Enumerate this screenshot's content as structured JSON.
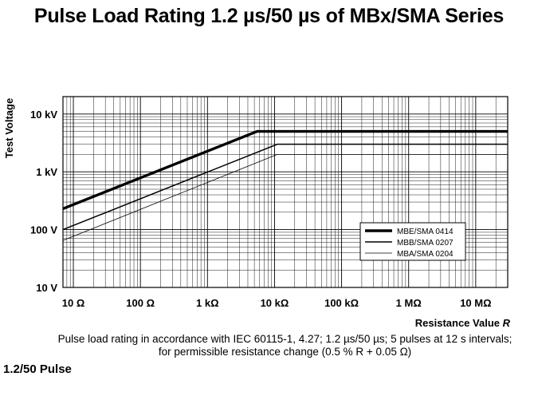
{
  "slide": {
    "title": "Pulse Load Rating 1.2 µs/50 µs of MBx/SMA Series",
    "caption_line1": "Pulse load rating in accordance with IEC 60115-1, 4.27; 1.2 µs/50 µs; 5 pulses at 12 s intervals;",
    "caption_line2": "for permissible resistance change (0.5 % R + 0.05 Ω)",
    "subheading": "1.2/50 Pulse"
  },
  "chart_data": {
    "type": "line",
    "x_scale": "log",
    "y_scale": "log",
    "xlabel": "Resistance Value R",
    "ylabel": "Test Voltage",
    "xlim": [
      7,
      30000000
    ],
    "ylim": [
      10,
      20000
    ],
    "x_ticks": [
      10,
      100,
      1000,
      10000,
      100000,
      1000000,
      10000000
    ],
    "x_tick_labels": [
      "10 Ω",
      "100 Ω",
      "1 kΩ",
      "10 kΩ",
      "100 kΩ",
      "1 MΩ",
      "10 MΩ"
    ],
    "y_ticks": [
      10,
      100,
      1000,
      10000
    ],
    "y_tick_labels": [
      "10 V",
      "100 V",
      "1 kV",
      "10 kV"
    ],
    "grid": true,
    "legend_position": "lower-right",
    "series": [
      {
        "name": "MBE/SMA 0414",
        "x": [
          7,
          5500,
          30000000
        ],
        "y": [
          230,
          5000,
          5000
        ],
        "color": "#000000",
        "width": 3.4
      },
      {
        "name": "MBB/SMA 0207",
        "x": [
          7,
          11000,
          30000000
        ],
        "y": [
          100,
          3000,
          3000
        ],
        "color": "#000000",
        "width": 1.5
      },
      {
        "name": "MBA/SMA 0204",
        "x": [
          7,
          11000,
          30000000
        ],
        "y": [
          65,
          2000,
          2000
        ],
        "color": "#000000",
        "width": 0.8
      }
    ]
  }
}
